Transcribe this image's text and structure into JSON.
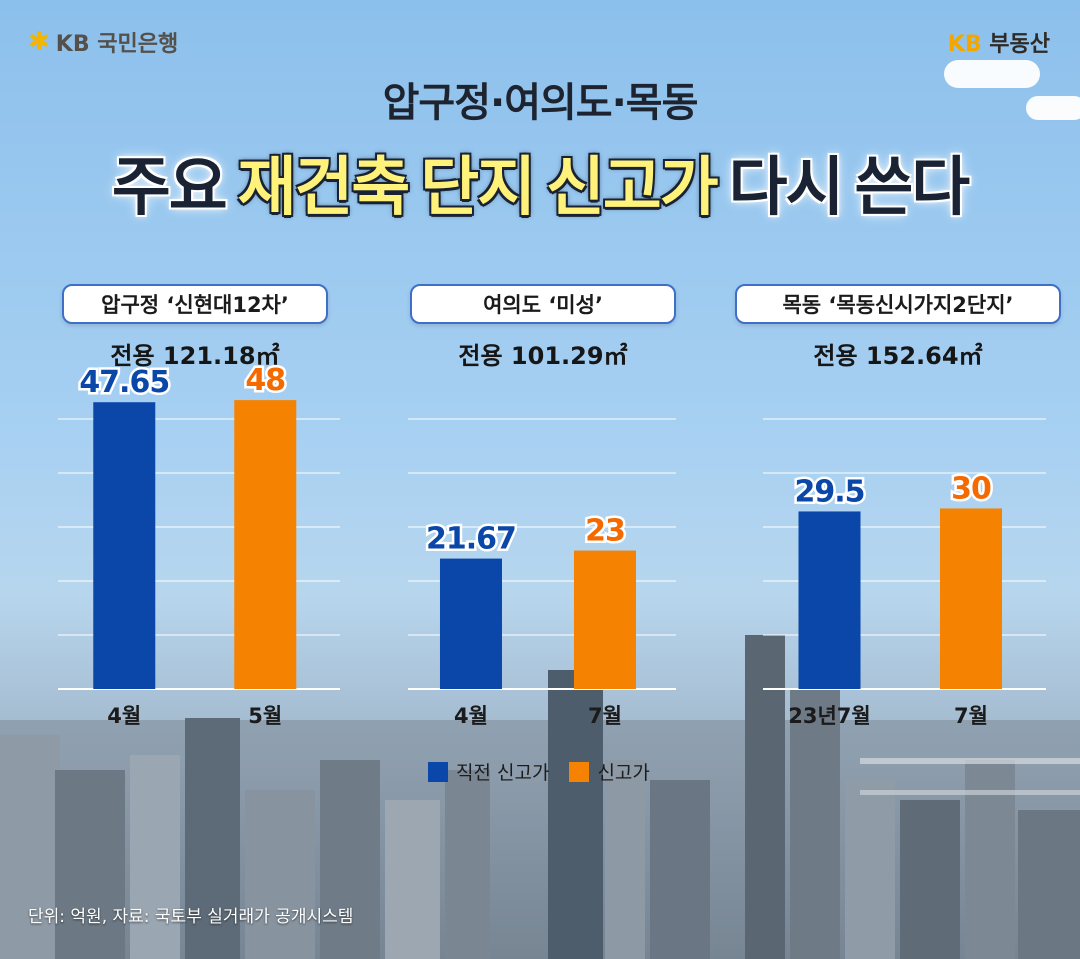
{
  "brand": {
    "left_logo": "KB 국민은행",
    "left_icon": "kb-star-icon",
    "right_logo_kb": "KB",
    "right_logo_text": "부동산"
  },
  "header": {
    "subtitle": "압구정·여의도·목동",
    "headline_parts": [
      "주요",
      "재건축",
      "단지",
      "신고가",
      "다시",
      "쓴다"
    ]
  },
  "colors": {
    "previous_high": "#0a47a8",
    "new_high": "#f58200",
    "value_previous": "#0a47a8",
    "value_new": "#f56a00"
  },
  "legend": {
    "previous_high": "직전 신고가",
    "new_high": "신고가"
  },
  "footnote": "단위: 억원, 자료: 국토부 실거래가 공개시스템",
  "chart_data": [
    {
      "type": "bar",
      "title": "압구정 ‘신현대12차’",
      "subtitle": "전용 121.18㎡",
      "categories": [
        "4월",
        "5월"
      ],
      "series": [
        {
          "name": "직전 신고가",
          "values": [
            47.65,
            null
          ]
        },
        {
          "name": "신고가",
          "values": [
            null,
            48
          ]
        }
      ],
      "labels": [
        "47.65",
        "48"
      ],
      "ylim": [
        0,
        54
      ]
    },
    {
      "type": "bar",
      "title": "여의도 ‘미성’",
      "subtitle": "전용 101.29㎡",
      "categories": [
        "4월",
        "7월"
      ],
      "series": [
        {
          "name": "직전 신고가",
          "values": [
            21.67,
            null
          ]
        },
        {
          "name": "신고가",
          "values": [
            null,
            23
          ]
        }
      ],
      "labels": [
        "21.67",
        "23"
      ],
      "ylim": [
        0,
        54
      ]
    },
    {
      "type": "bar",
      "title": "목동 ‘목동신시가지2단지’",
      "subtitle": "전용 152.64㎡",
      "categories": [
        "23년7월",
        "7월"
      ],
      "series": [
        {
          "name": "직전 신고가",
          "values": [
            29.5,
            null
          ]
        },
        {
          "name": "신고가",
          "values": [
            null,
            30
          ]
        }
      ],
      "labels": [
        "29.5",
        "30"
      ],
      "ylim": [
        0,
        54
      ]
    }
  ]
}
